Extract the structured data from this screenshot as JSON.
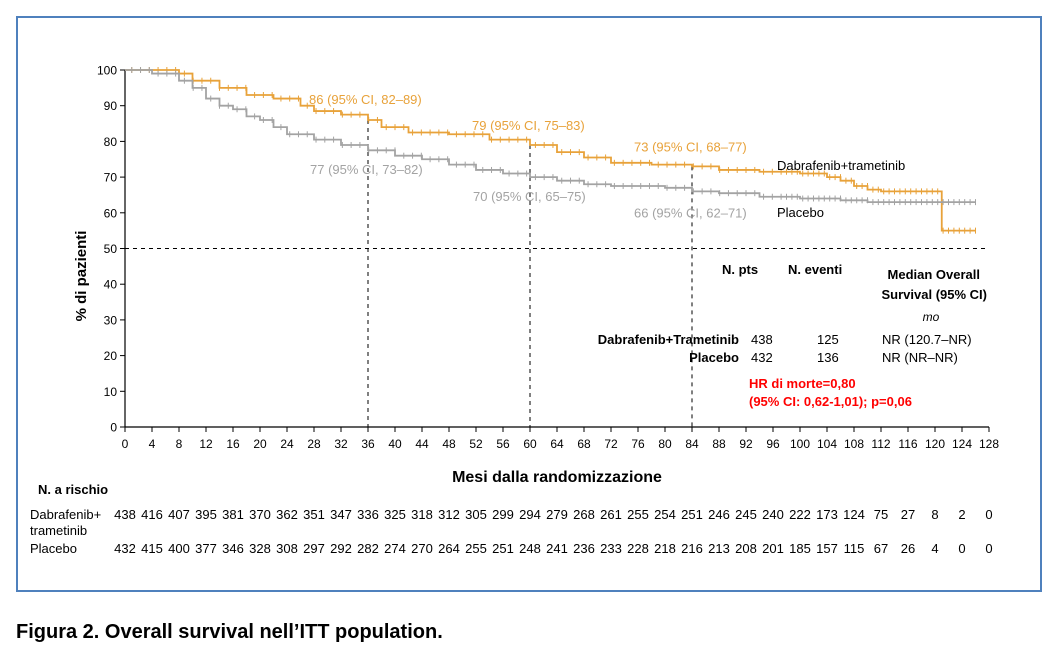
{
  "caption": "Figura 2. Overall survival nell’ITT population.",
  "chart_data": {
    "type": "line",
    "subtype": "kaplan-meier",
    "xlabel": "Mesi dalla randomizzazione",
    "ylabel": "% di pazienti",
    "xlim": [
      0,
      128
    ],
    "ylim": [
      0,
      100
    ],
    "xticks": [
      0,
      4,
      8,
      12,
      16,
      20,
      24,
      28,
      32,
      36,
      40,
      44,
      48,
      52,
      56,
      60,
      64,
      68,
      72,
      76,
      80,
      84,
      88,
      92,
      96,
      100,
      104,
      108,
      112,
      116,
      120,
      124,
      128
    ],
    "yticks": [
      0,
      10,
      20,
      30,
      40,
      50,
      60,
      70,
      80,
      90,
      100
    ],
    "reference_line": {
      "y": 50,
      "style": "dashed"
    },
    "vertical_markers": [
      36,
      60,
      84
    ],
    "colors": {
      "dabrafenib": "#e8a23a",
      "placebo": "#a3a3a3",
      "hr_text": "#ff0000",
      "frame": "#4f81bd"
    },
    "series": [
      {
        "name": "Dabrafenib+trametinib",
        "color": "#e8a23a",
        "points": [
          [
            0,
            100
          ],
          [
            8,
            99
          ],
          [
            10,
            97
          ],
          [
            14,
            95
          ],
          [
            18,
            93
          ],
          [
            22,
            92
          ],
          [
            26,
            90
          ],
          [
            28,
            88.5
          ],
          [
            32,
            87.5
          ],
          [
            36,
            86
          ],
          [
            38,
            84
          ],
          [
            42,
            82.5
          ],
          [
            48,
            82
          ],
          [
            54,
            80.5
          ],
          [
            60,
            79
          ],
          [
            64,
            77
          ],
          [
            68,
            75.5
          ],
          [
            72,
            74
          ],
          [
            78,
            73.5
          ],
          [
            84,
            73
          ],
          [
            88,
            72
          ],
          [
            94,
            71.5
          ],
          [
            100,
            71
          ],
          [
            104,
            70
          ],
          [
            106,
            69
          ],
          [
            108,
            67.5
          ],
          [
            110,
            66.5
          ],
          [
            112,
            66
          ],
          [
            121,
            66
          ],
          [
            121,
            55
          ],
          [
            126,
            55
          ]
        ]
      },
      {
        "name": "Placebo",
        "color": "#a3a3a3",
        "points": [
          [
            0,
            100
          ],
          [
            4,
            99
          ],
          [
            8,
            97
          ],
          [
            10,
            95
          ],
          [
            12,
            92
          ],
          [
            14,
            90
          ],
          [
            16,
            89
          ],
          [
            18,
            87
          ],
          [
            20,
            86
          ],
          [
            22,
            84
          ],
          [
            24,
            82
          ],
          [
            28,
            80.5
          ],
          [
            32,
            79
          ],
          [
            36,
            77.5
          ],
          [
            40,
            76
          ],
          [
            44,
            75
          ],
          [
            48,
            73.5
          ],
          [
            52,
            72
          ],
          [
            56,
            71
          ],
          [
            60,
            70
          ],
          [
            64,
            69
          ],
          [
            68,
            68
          ],
          [
            72,
            67.5
          ],
          [
            80,
            67
          ],
          [
            84,
            66
          ],
          [
            88,
            65.5
          ],
          [
            94,
            64.5
          ],
          [
            100,
            64
          ],
          [
            106,
            63.5
          ],
          [
            110,
            63
          ],
          [
            126,
            63
          ]
        ]
      }
    ],
    "annotations": [
      {
        "text": "86 (95% CI, 82–89)",
        "series": "Dabrafenib+trametinib",
        "x": 36,
        "y": 86
      },
      {
        "text": "79 (95% CI, 75–83)",
        "series": "Dabrafenib+trametinib",
        "x": 60,
        "y": 79
      },
      {
        "text": "73 (95% CI, 68–77)",
        "series": "Dabrafenib+trametinib",
        "x": 84,
        "y": 73
      },
      {
        "text": "77 (95% CI, 73–82)",
        "series": "Placebo",
        "x": 36,
        "y": 77
      },
      {
        "text": "70 (95% CI, 65–75)",
        "series": "Placebo",
        "x": 60,
        "y": 70
      },
      {
        "text": "66 (95% CI, 62–71)",
        "series": "Placebo",
        "x": 84,
        "y": 66
      }
    ],
    "curve_labels": [
      "Dabrafenib+trametinib",
      "Placebo"
    ],
    "summary_table": {
      "headers": [
        "N. pts",
        "N. eventi",
        "Median Overall",
        "Survival (95% CI)",
        "mo"
      ],
      "rows": [
        {
          "group": "Dabrafenib+Trametinib",
          "n": "438",
          "events": "125",
          "median": "NR (120.7–NR)"
        },
        {
          "group": "Placebo",
          "n": "432",
          "events": "136",
          "median": "NR (NR–NR)"
        }
      ]
    },
    "hr_text": [
      "HR di morte=0,80",
      "(95% CI: 0,62-1,01); p=0,06"
    ],
    "at_risk": {
      "title": "N. a rischio",
      "rows": [
        {
          "label": [
            "Dabrafenib+",
            "trametinib"
          ],
          "values": [
            "438",
            "416",
            "407",
            "395",
            "381",
            "370",
            "362",
            "351",
            "347",
            "336",
            "325",
            "318",
            "312",
            "305",
            "299",
            "294",
            "279",
            "268",
            "261",
            "255",
            "254",
            "251",
            "246",
            "245",
            "240",
            "222",
            "173",
            "124",
            "75",
            "27",
            "8",
            "2",
            "0"
          ]
        },
        {
          "label": [
            "Placebo"
          ],
          "values": [
            "432",
            "415",
            "400",
            "377",
            "346",
            "328",
            "308",
            "297",
            "292",
            "282",
            "274",
            "270",
            "264",
            "255",
            "251",
            "248",
            "241",
            "236",
            "233",
            "228",
            "218",
            "216",
            "213",
            "208",
            "201",
            "185",
            "157",
            "115",
            "67",
            "26",
            "4",
            "0",
            "0"
          ]
        }
      ]
    }
  }
}
